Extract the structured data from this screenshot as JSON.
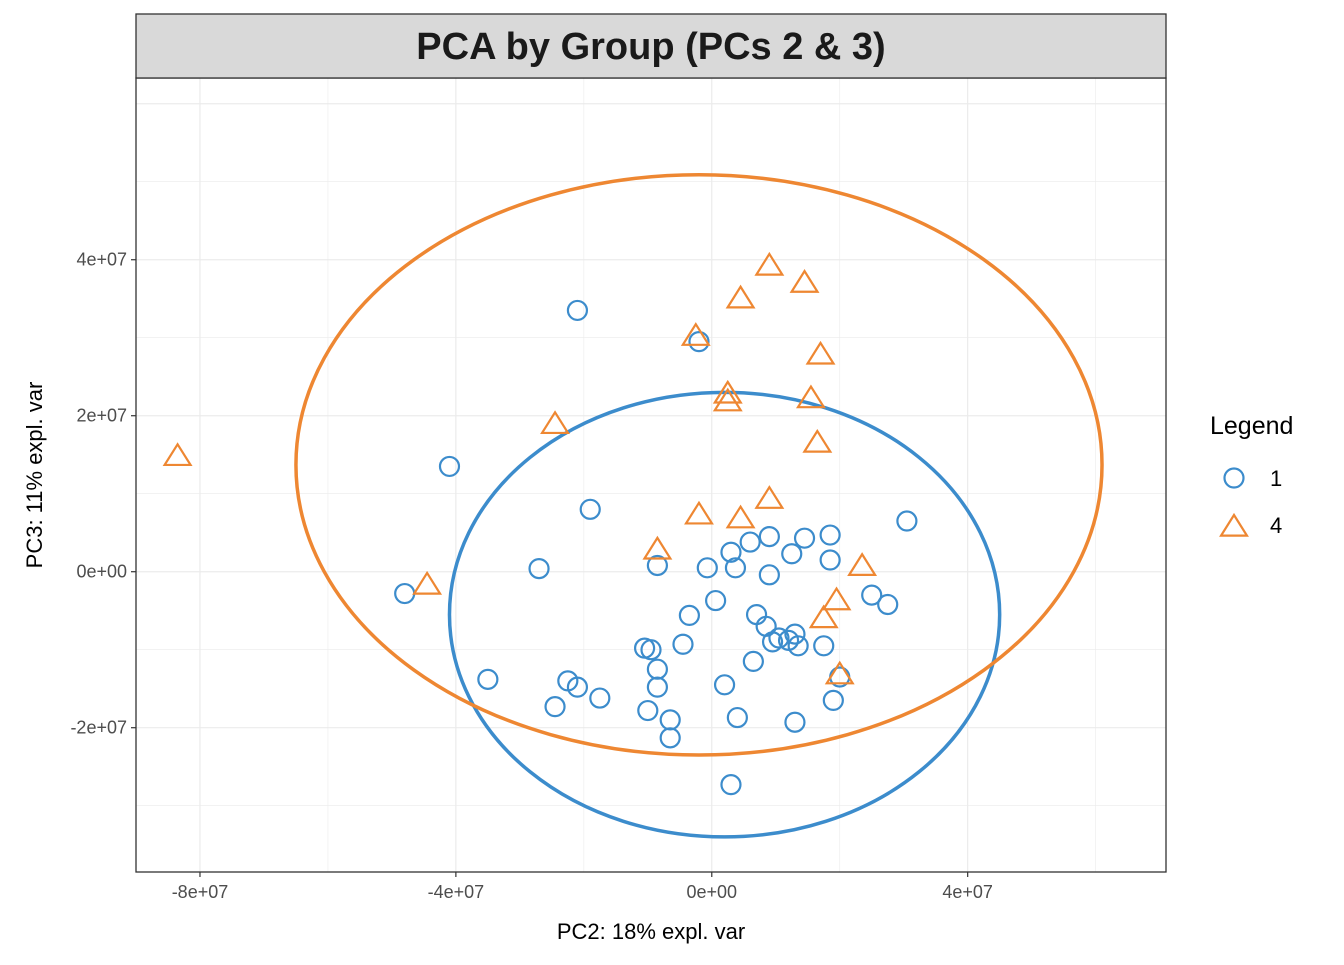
{
  "chart_data": {
    "type": "scatter",
    "title": "PCA by Group (PCs 2 & 3)",
    "xlabel": "PC2: 18% expl. var",
    "ylabel": "PC3: 11% expl. var",
    "xlim": [
      -90000000,
      71000000
    ],
    "ylim": [
      -38500000,
      63300000
    ],
    "x_ticks": [
      -80000000,
      -40000000,
      0,
      40000000
    ],
    "x_tick_labels": [
      "-8e+07",
      "-4e+07",
      "0e+00",
      "4e+07"
    ],
    "y_ticks": [
      -20000000,
      0,
      20000000,
      40000000
    ],
    "y_tick_labels": [
      "-2e+07",
      "0e+00",
      "2e+07",
      "4e+07"
    ],
    "grid": true,
    "legend": {
      "title": "Legend",
      "position": "right"
    },
    "series": [
      {
        "name": "1",
        "shape": "circle",
        "color": "#3C8CCC",
        "ellipse": {
          "cx": 2000000,
          "cy": -5500000,
          "rx": 43000000,
          "ry": 28500000
        },
        "points": [
          [
            -21000000,
            33500000
          ],
          [
            -2000000,
            29500000
          ],
          [
            -41000000,
            13500000
          ],
          [
            -19000000,
            8000000
          ],
          [
            30500000,
            6500000
          ],
          [
            -27000000,
            400000
          ],
          [
            -8500000,
            800000
          ],
          [
            -700000,
            500000
          ],
          [
            3000000,
            2500000
          ],
          [
            6000000,
            3800000
          ],
          [
            9000000,
            4500000
          ],
          [
            14500000,
            4300000
          ],
          [
            18500000,
            4700000
          ],
          [
            12500000,
            2300000
          ],
          [
            18500000,
            1500000
          ],
          [
            3700000,
            500000
          ],
          [
            9000000,
            -400000
          ],
          [
            -48000000,
            -2800000
          ],
          [
            25000000,
            -3000000
          ],
          [
            27500000,
            -4200000
          ],
          [
            600000,
            -3700000
          ],
          [
            -3500000,
            -5600000
          ],
          [
            7000000,
            -5500000
          ],
          [
            8500000,
            -7000000
          ],
          [
            9500000,
            -9000000
          ],
          [
            10500000,
            -8500000
          ],
          [
            12000000,
            -8800000
          ],
          [
            13000000,
            -8000000
          ],
          [
            13500000,
            -9500000
          ],
          [
            17500000,
            -9500000
          ],
          [
            -4500000,
            -9300000
          ],
          [
            -10500000,
            -9800000
          ],
          [
            -9500000,
            -10000000
          ],
          [
            -8500000,
            -12500000
          ],
          [
            6500000,
            -11500000
          ],
          [
            -35000000,
            -13800000
          ],
          [
            -22500000,
            -14000000
          ],
          [
            -21000000,
            -14800000
          ],
          [
            -8500000,
            -14800000
          ],
          [
            2000000,
            -14500000
          ],
          [
            20000000,
            -13500000
          ],
          [
            -17500000,
            -16200000
          ],
          [
            -24500000,
            -17300000
          ],
          [
            -10000000,
            -17800000
          ],
          [
            19000000,
            -16500000
          ],
          [
            -6500000,
            -19000000
          ],
          [
            4000000,
            -18700000
          ],
          [
            13000000,
            -19300000
          ],
          [
            -6500000,
            -21300000
          ],
          [
            3000000,
            -27300000
          ]
        ]
      },
      {
        "name": "4",
        "shape": "triangle",
        "color": "#EE8732",
        "ellipse": {
          "cx": -2000000,
          "cy": 13700000,
          "rx": 63000000,
          "ry": 37200000
        },
        "points": [
          [
            9000000,
            39200000
          ],
          [
            14500000,
            37000000
          ],
          [
            4500000,
            35000000
          ],
          [
            -2500000,
            30200000
          ],
          [
            17000000,
            27800000
          ],
          [
            2500000,
            22800000
          ],
          [
            2500000,
            21800000
          ],
          [
            15500000,
            22200000
          ],
          [
            -24500000,
            18900000
          ],
          [
            -83500000,
            14800000
          ],
          [
            16500000,
            16500000
          ],
          [
            9000000,
            9300000
          ],
          [
            -2000000,
            7300000
          ],
          [
            4500000,
            6800000
          ],
          [
            -8500000,
            2800000
          ],
          [
            23500000,
            700000
          ],
          [
            -44500000,
            -1700000
          ],
          [
            19500000,
            -3700000
          ],
          [
            17500000,
            -6000000
          ],
          [
            20000000,
            -13200000
          ]
        ]
      }
    ]
  }
}
